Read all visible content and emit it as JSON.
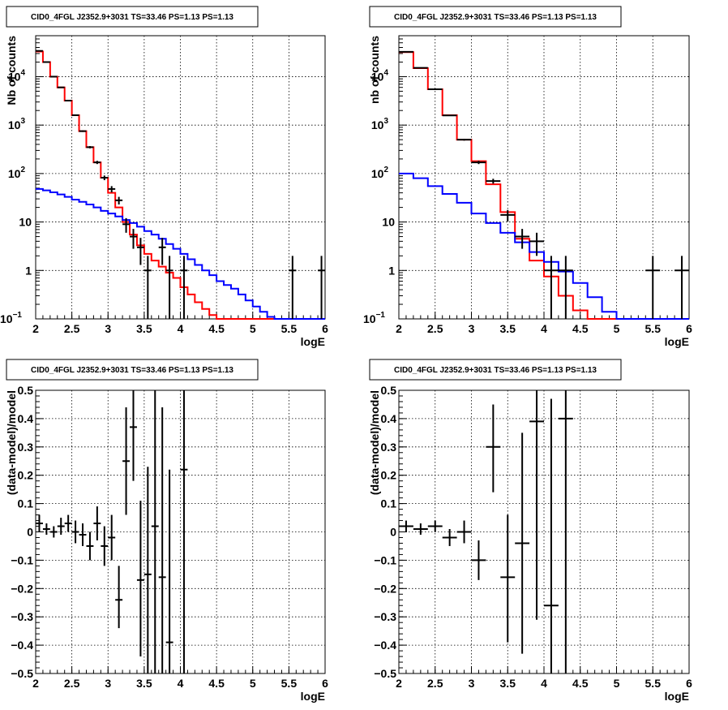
{
  "chart_data": [
    {
      "type": "line",
      "title": "CID0_4FGL J2352.9+3031 TS=33.46 PS=1.13 PS=1.13",
      "xlabel": "logE",
      "ylabel": "Nb of counts",
      "xlim": [
        2,
        6
      ],
      "ylim": [
        0.1,
        70000
      ],
      "log_y": true,
      "grid": true,
      "x_ticks": [
        "2",
        "2.5",
        "3",
        "3.5",
        "4",
        "4.5",
        "5",
        "5.5",
        "6"
      ],
      "y_ticks": [
        {
          "v": 0.1,
          "base": "10",
          "exp": "−1"
        },
        {
          "v": 1,
          "base": "1",
          "exp": ""
        },
        {
          "v": 10,
          "base": "10",
          "exp": ""
        },
        {
          "v": 100,
          "base": "10",
          "exp": "2"
        },
        {
          "v": 1000,
          "base": "10",
          "exp": "3"
        },
        {
          "v": 10000,
          "base": "10",
          "exp": "4"
        }
      ],
      "bin_width": 0.1,
      "series": [
        {
          "color": "#ff0000",
          "values": [
            33000,
            20000,
            10000,
            6000,
            3200,
            1600,
            750,
            350,
            170,
            82,
            40,
            20,
            10,
            5.5,
            3.3,
            2.2,
            1.6,
            1.2,
            0.9,
            0.7,
            0.45,
            0.32,
            0.22,
            0.16,
            0.12,
            0.1,
            0.1,
            0.1,
            0.1,
            0.1,
            0.1,
            0.1,
            0.1,
            0.1,
            0.1,
            0.1,
            0.1,
            0.1,
            0.1,
            0.1
          ]
        },
        {
          "color": "#0000ff",
          "values": [
            48,
            45,
            41,
            37,
            33,
            29,
            26,
            23,
            20,
            17,
            15,
            13,
            11,
            9.5,
            8,
            6.5,
            5.5,
            4.5,
            3.5,
            2.8,
            2.2,
            1.7,
            1.3,
            1.0,
            0.8,
            0.6,
            0.5,
            0.42,
            0.32,
            0.24,
            0.18,
            0.14,
            0.11,
            0.1,
            0.1,
            0.1,
            0.1,
            0.1,
            0.1,
            0.1
          ]
        }
      ],
      "points": [
        {
          "x": 2.05,
          "y": 34000,
          "xerr": 0.05,
          "ylo": 33800,
          "yhi": 34200
        },
        {
          "x": 2.15,
          "y": 20000,
          "xerr": 0.05,
          "ylo": 19860,
          "yhi": 20140
        },
        {
          "x": 2.25,
          "y": 10000,
          "xerr": 0.05,
          "ylo": 9900,
          "yhi": 10100
        },
        {
          "x": 2.35,
          "y": 6000,
          "xerr": 0.05,
          "ylo": 5920,
          "yhi": 6080
        },
        {
          "x": 2.45,
          "y": 3200,
          "xerr": 0.05,
          "ylo": 3140,
          "yhi": 3260
        },
        {
          "x": 2.55,
          "y": 1600,
          "xerr": 0.05,
          "ylo": 1560,
          "yhi": 1640
        },
        {
          "x": 2.65,
          "y": 750,
          "xerr": 0.05,
          "ylo": 723,
          "yhi": 777
        },
        {
          "x": 2.75,
          "y": 350,
          "xerr": 0.05,
          "ylo": 331,
          "yhi": 369
        },
        {
          "x": 2.85,
          "y": 170,
          "xerr": 0.05,
          "ylo": 157,
          "yhi": 183
        },
        {
          "x": 2.95,
          "y": 82,
          "xerr": 0.05,
          "ylo": 73,
          "yhi": 91
        },
        {
          "x": 3.05,
          "y": 48,
          "xerr": 0.05,
          "ylo": 41,
          "yhi": 55
        },
        {
          "x": 3.15,
          "y": 28,
          "xerr": 0.05,
          "ylo": 23,
          "yhi": 33
        },
        {
          "x": 3.25,
          "y": 9,
          "xerr": 0.05,
          "ylo": 6,
          "yhi": 12
        },
        {
          "x": 3.35,
          "y": 5,
          "xerr": 0.05,
          "ylo": 2.8,
          "yhi": 7.2
        },
        {
          "x": 3.45,
          "y": 3,
          "xerr": 0.05,
          "ylo": 1.3,
          "yhi": 4.7
        },
        {
          "x": 3.55,
          "y": 1,
          "xerr": 0.05,
          "ylo": 0.1,
          "yhi": 2
        },
        {
          "x": 3.75,
          "y": 3,
          "xerr": 0.05,
          "ylo": 1.3,
          "yhi": 4.7
        },
        {
          "x": 3.85,
          "y": 1,
          "xerr": 0.05,
          "ylo": 0.1,
          "yhi": 2
        },
        {
          "x": 4.05,
          "y": 1,
          "xerr": 0.05,
          "ylo": 0.1,
          "yhi": 2
        },
        {
          "x": 5.55,
          "y": 1,
          "xerr": 0.05,
          "ylo": 0.1,
          "yhi": 2
        },
        {
          "x": 5.95,
          "y": 1,
          "xerr": 0.05,
          "ylo": 0.1,
          "yhi": 2
        }
      ]
    },
    {
      "type": "line",
      "title": "CID0_4FGL J2352.9+3031 TS=33.46 PS=1.13 PS=1.13",
      "xlabel": "logE",
      "ylabel": "nb of counts",
      "xlim": [
        2,
        6
      ],
      "ylim": [
        0.1,
        70000
      ],
      "log_y": true,
      "grid": true,
      "x_ticks": [
        "2",
        "2.5",
        "3",
        "3.5",
        "4",
        "4.5",
        "5",
        "5.5",
        "6"
      ],
      "y_ticks": [
        {
          "v": 0.1,
          "base": "10",
          "exp": "−1"
        },
        {
          "v": 1,
          "base": "1",
          "exp": ""
        },
        {
          "v": 10,
          "base": "10",
          "exp": ""
        },
        {
          "v": 100,
          "base": "10",
          "exp": "2"
        },
        {
          "v": 1000,
          "base": "10",
          "exp": "3"
        },
        {
          "v": 10000,
          "base": "10",
          "exp": "4"
        }
      ],
      "bin_width": 0.2,
      "series": [
        {
          "color": "#ff0000",
          "values": [
            32000,
            15000,
            5500,
            1600,
            500,
            180,
            60,
            16,
            4.5,
            1.6,
            0.75,
            0.3,
            0.15,
            0.1,
            0.1,
            0.1,
            0.1,
            0.1,
            0.1,
            0.1
          ]
        },
        {
          "color": "#0000ff",
          "values": [
            100,
            80,
            55,
            38,
            25,
            15,
            9.5,
            6,
            3.8,
            2.4,
            1.5,
            0.95,
            0.55,
            0.28,
            0.14,
            0.1,
            0.1,
            0.1,
            0.1,
            0.1
          ]
        }
      ],
      "points": [
        {
          "x": 2.1,
          "y": 32500,
          "xerr": 0.1,
          "ylo": 32300,
          "yhi": 32700
        },
        {
          "x": 2.3,
          "y": 15200,
          "xerr": 0.1,
          "ylo": 15070,
          "yhi": 15330
        },
        {
          "x": 2.5,
          "y": 5500,
          "xerr": 0.1,
          "ylo": 5420,
          "yhi": 5580
        },
        {
          "x": 2.7,
          "y": 1580,
          "xerr": 0.1,
          "ylo": 1540,
          "yhi": 1620
        },
        {
          "x": 2.9,
          "y": 500,
          "xerr": 0.1,
          "ylo": 478,
          "yhi": 522
        },
        {
          "x": 3.1,
          "y": 170,
          "xerr": 0.1,
          "ylo": 157,
          "yhi": 183
        },
        {
          "x": 3.3,
          "y": 70,
          "xerr": 0.1,
          "ylo": 62,
          "yhi": 78
        },
        {
          "x": 3.5,
          "y": 14,
          "xerr": 0.1,
          "ylo": 10.3,
          "yhi": 17.7
        },
        {
          "x": 3.7,
          "y": 5,
          "xerr": 0.1,
          "ylo": 2.8,
          "yhi": 7.2
        },
        {
          "x": 3.9,
          "y": 4,
          "xerr": 0.1,
          "ylo": 2,
          "yhi": 6
        },
        {
          "x": 4.1,
          "y": 1,
          "xerr": 0.1,
          "ylo": 0.1,
          "yhi": 2
        },
        {
          "x": 4.3,
          "y": 1,
          "xerr": 0.1,
          "ylo": 0.1,
          "yhi": 2
        },
        {
          "x": 5.5,
          "y": 1,
          "xerr": 0.1,
          "ylo": 0.1,
          "yhi": 2
        },
        {
          "x": 5.9,
          "y": 1,
          "xerr": 0.1,
          "ylo": 0.1,
          "yhi": 2
        }
      ]
    },
    {
      "type": "scatter",
      "title": "CID0_4FGL J2352.9+3031 TS=33.46 PS=1.13 PS=1.13",
      "xlabel": "logE",
      "ylabel": "(data-model)/model",
      "xlim": [
        2,
        6
      ],
      "ylim": [
        -0.5,
        0.5
      ],
      "log_y": false,
      "grid": true,
      "x_ticks": [
        "2",
        "2.5",
        "3",
        "3.5",
        "4",
        "4.5",
        "5",
        "5.5",
        "6"
      ],
      "y_ticks": [
        "−0.5",
        "−0.4",
        "−0.3",
        "−0.2",
        "−0.1",
        "0",
        "0.1",
        "0.2",
        "0.3",
        "0.4",
        "0.5"
      ],
      "points": [
        {
          "x": 2.05,
          "y": 0.03,
          "xerr": 0.05,
          "ylo": 0.0,
          "yhi": 0.06
        },
        {
          "x": 2.15,
          "y": 0.01,
          "xerr": 0.05,
          "ylo": -0.01,
          "yhi": 0.03
        },
        {
          "x": 2.25,
          "y": 0.0,
          "xerr": 0.05,
          "ylo": -0.02,
          "yhi": 0.02
        },
        {
          "x": 2.35,
          "y": 0.02,
          "xerr": 0.05,
          "ylo": -0.01,
          "yhi": 0.05
        },
        {
          "x": 2.45,
          "y": 0.03,
          "xerr": 0.05,
          "ylo": 0.0,
          "yhi": 0.06
        },
        {
          "x": 2.55,
          "y": 0.0,
          "xerr": 0.05,
          "ylo": -0.04,
          "yhi": 0.04
        },
        {
          "x": 2.65,
          "y": -0.01,
          "xerr": 0.05,
          "ylo": -0.05,
          "yhi": 0.03
        },
        {
          "x": 2.75,
          "y": -0.05,
          "xerr": 0.05,
          "ylo": -0.1,
          "yhi": 0.0
        },
        {
          "x": 2.85,
          "y": 0.03,
          "xerr": 0.05,
          "ylo": -0.03,
          "yhi": 0.09
        },
        {
          "x": 2.95,
          "y": -0.05,
          "xerr": 0.05,
          "ylo": -0.12,
          "yhi": 0.02
        },
        {
          "x": 3.05,
          "y": -0.02,
          "xerr": 0.05,
          "ylo": -0.1,
          "yhi": 0.06
        },
        {
          "x": 3.15,
          "y": -0.24,
          "xerr": 0.05,
          "ylo": -0.34,
          "yhi": -0.12
        },
        {
          "x": 3.25,
          "y": 0.25,
          "xerr": 0.05,
          "ylo": 0.06,
          "yhi": 0.44
        },
        {
          "x": 3.35,
          "y": 0.37,
          "xerr": 0.05,
          "ylo": 0.18,
          "yhi": 0.5
        },
        {
          "x": 3.45,
          "y": -0.17,
          "xerr": 0.05,
          "ylo": -0.44,
          "yhi": 0.11
        },
        {
          "x": 3.55,
          "y": -0.15,
          "xerr": 0.05,
          "ylo": -0.5,
          "yhi": 0.23
        },
        {
          "x": 3.65,
          "y": 0.02,
          "xerr": 0.05,
          "ylo": -0.5,
          "yhi": 0.5
        },
        {
          "x": 3.75,
          "y": -0.16,
          "xerr": 0.05,
          "ylo": -0.5,
          "yhi": 0.44
        },
        {
          "x": 3.85,
          "y": -0.39,
          "xerr": 0.05,
          "ylo": -0.5,
          "yhi": 0.22
        },
        {
          "x": 4.05,
          "y": 0.22,
          "xerr": 0.05,
          "ylo": -0.5,
          "yhi": 0.5
        }
      ]
    },
    {
      "type": "scatter",
      "title": "CID0_4FGL J2352.9+3031 TS=33.46 PS=1.13 PS=1.13",
      "xlabel": "logE",
      "ylabel": "(data-model)/model",
      "xlim": [
        2,
        6
      ],
      "ylim": [
        -0.5,
        0.5
      ],
      "log_y": false,
      "grid": true,
      "x_ticks": [
        "2",
        "2.5",
        "3",
        "3.5",
        "4",
        "4.5",
        "5",
        "5.5",
        "6"
      ],
      "y_ticks": [
        "−0.5",
        "−0.4",
        "−0.3",
        "−0.2",
        "−0.1",
        "0",
        "0.1",
        "0.2",
        "0.3",
        "0.4",
        "0.5"
      ],
      "points": [
        {
          "x": 2.1,
          "y": 0.02,
          "xerr": 0.1,
          "ylo": 0.0,
          "yhi": 0.04
        },
        {
          "x": 2.3,
          "y": 0.01,
          "xerr": 0.1,
          "ylo": -0.01,
          "yhi": 0.03
        },
        {
          "x": 2.5,
          "y": 0.02,
          "xerr": 0.1,
          "ylo": 0.0,
          "yhi": 0.04
        },
        {
          "x": 2.7,
          "y": -0.02,
          "xerr": 0.1,
          "ylo": -0.05,
          "yhi": 0.01
        },
        {
          "x": 2.9,
          "y": 0.0,
          "xerr": 0.1,
          "ylo": -0.04,
          "yhi": 0.04
        },
        {
          "x": 3.1,
          "y": -0.1,
          "xerr": 0.1,
          "ylo": -0.17,
          "yhi": -0.03
        },
        {
          "x": 3.3,
          "y": 0.3,
          "xerr": 0.1,
          "ylo": 0.14,
          "yhi": 0.45
        },
        {
          "x": 3.5,
          "y": -0.16,
          "xerr": 0.1,
          "ylo": -0.39,
          "yhi": 0.06
        },
        {
          "x": 3.7,
          "y": -0.04,
          "xerr": 0.1,
          "ylo": -0.43,
          "yhi": 0.35
        },
        {
          "x": 3.9,
          "y": 0.39,
          "xerr": 0.1,
          "ylo": -0.31,
          "yhi": 0.5
        },
        {
          "x": 4.1,
          "y": -0.26,
          "xerr": 0.1,
          "ylo": -0.5,
          "yhi": 0.47
        },
        {
          "x": 4.3,
          "y": 0.4,
          "xerr": 0.1,
          "ylo": -0.5,
          "yhi": 0.5
        }
      ]
    }
  ]
}
